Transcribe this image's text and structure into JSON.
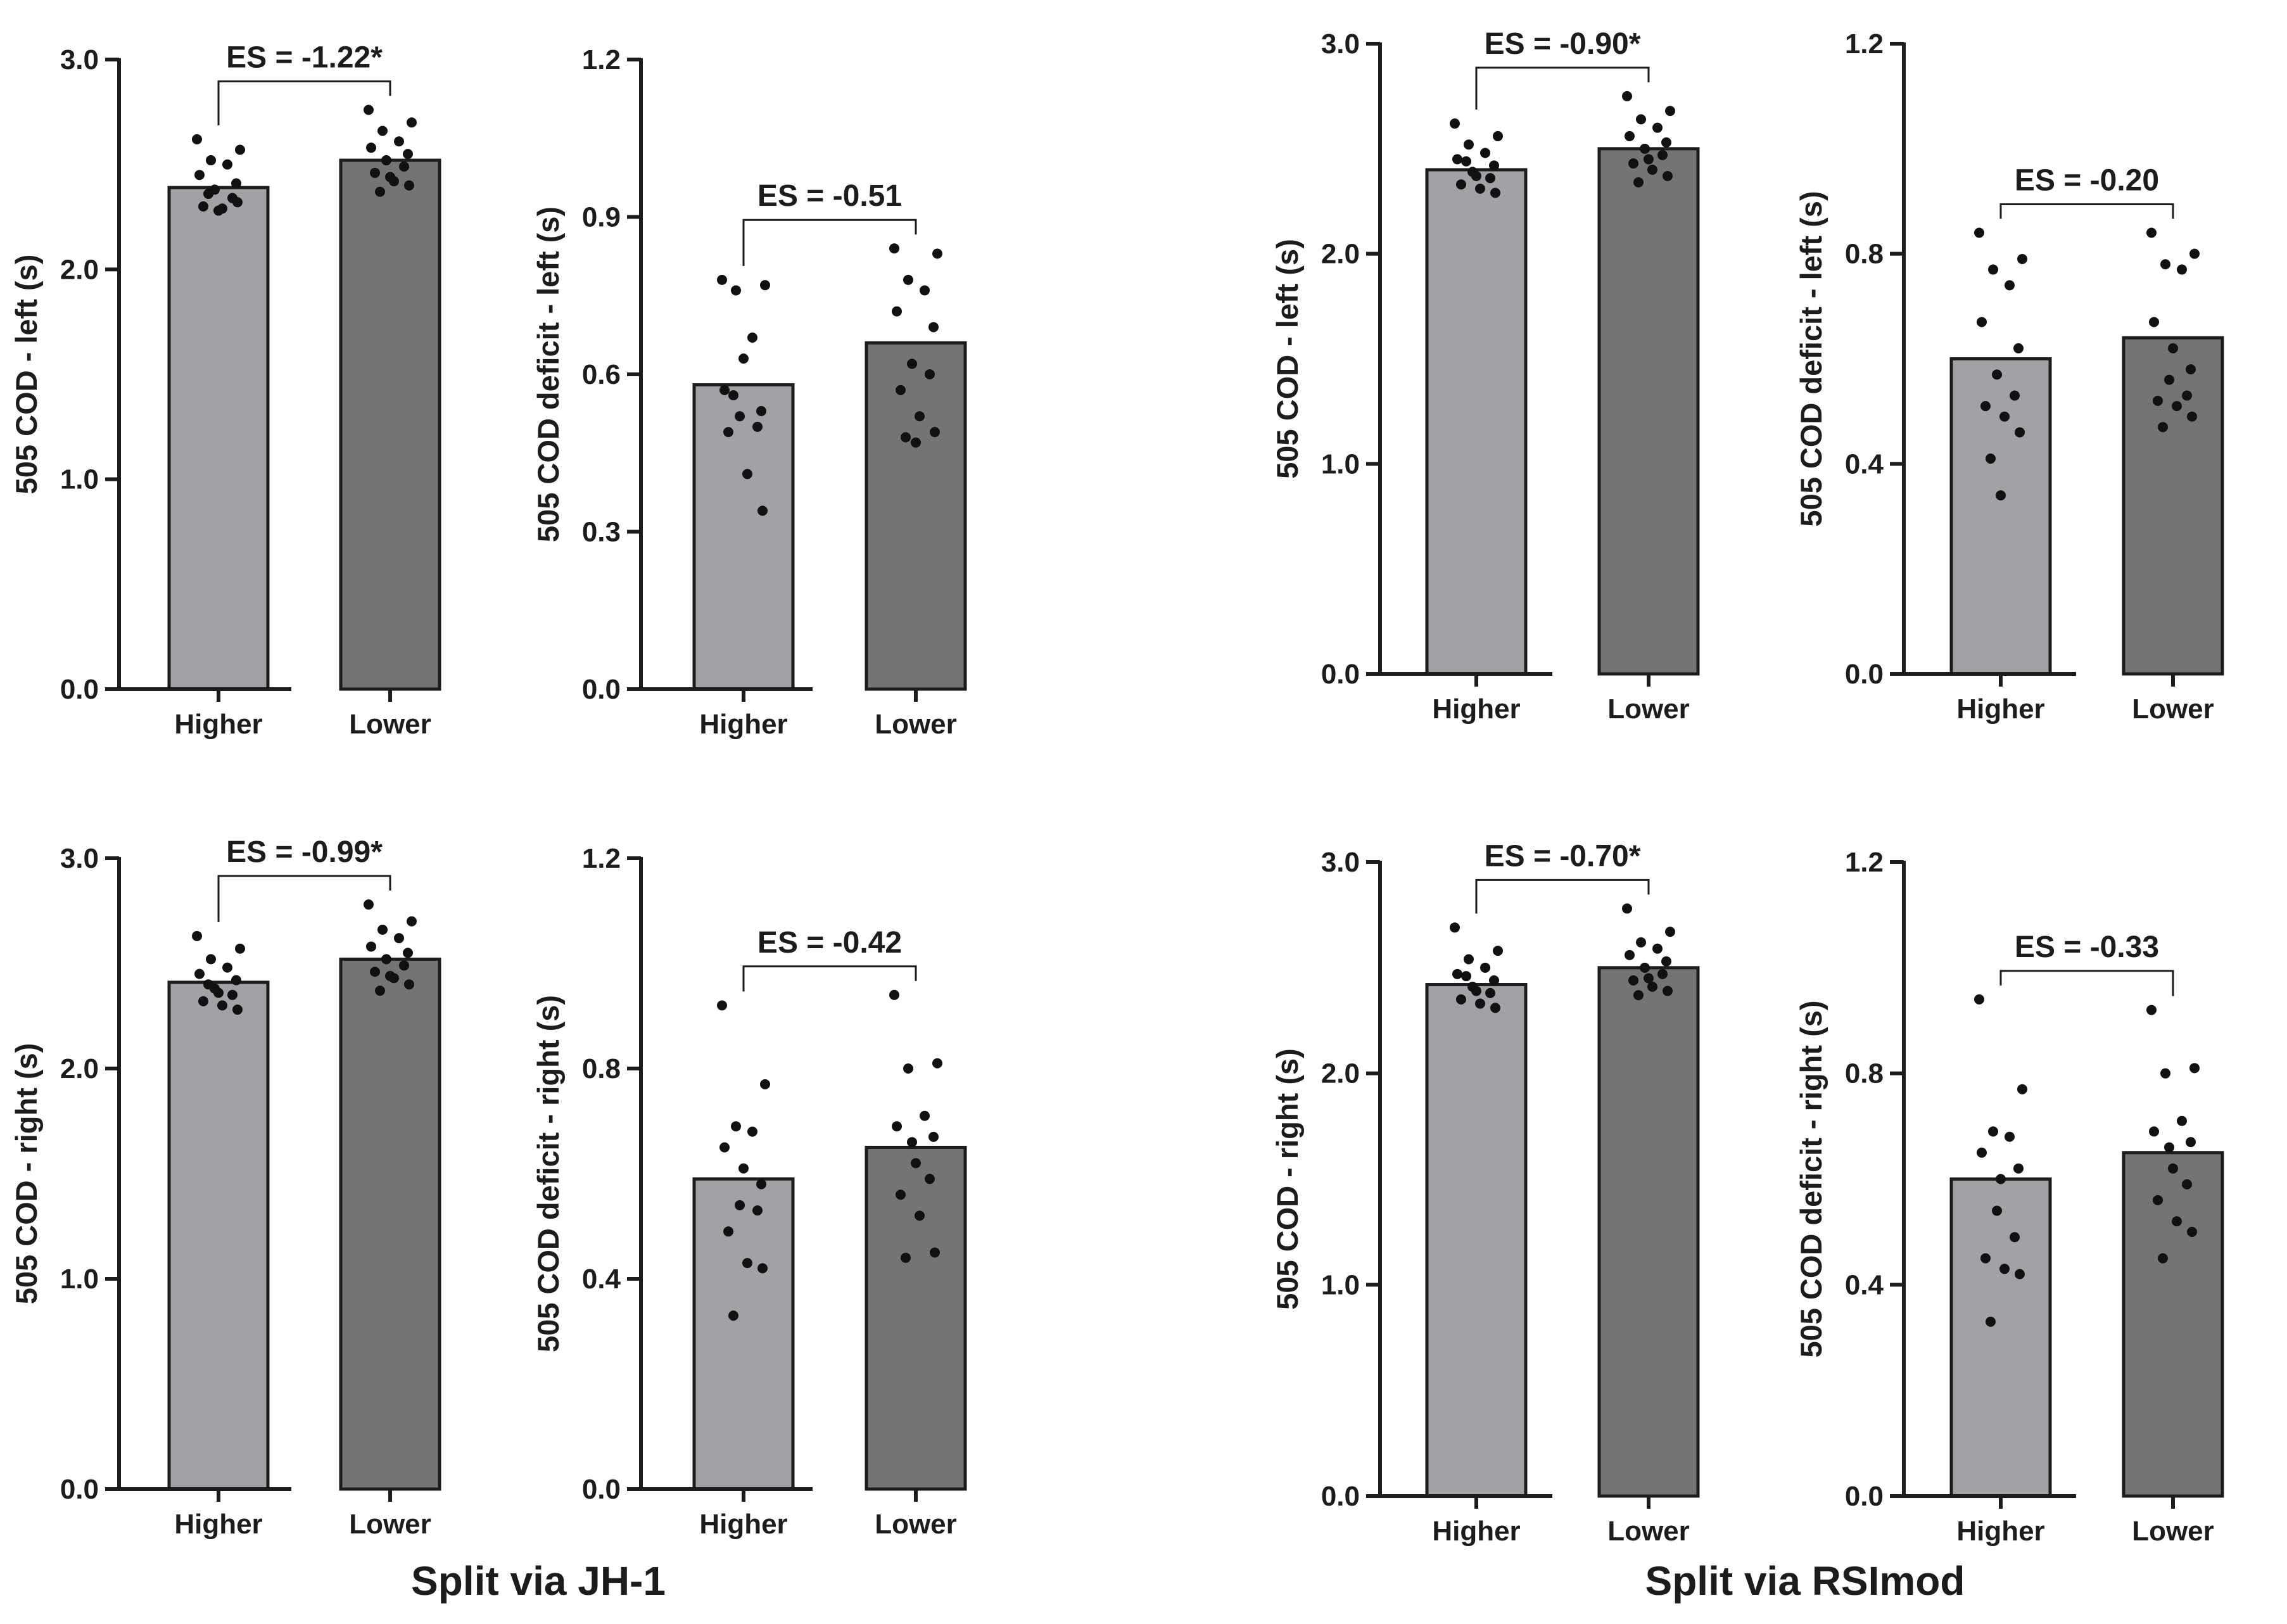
{
  "figure": {
    "group_labels": [
      "Split via JH-1",
      "Split via RSImod"
    ],
    "colors": {
      "higher_bar": "#a2a1a6",
      "lower_bar": "#747474",
      "ink": "#1c1c1c",
      "dot": "#111111"
    }
  },
  "chart_data": [
    {
      "type": "bar",
      "group": "Split via JH-1",
      "categories": [
        "Higher",
        "Lower"
      ],
      "values": [
        2.39,
        2.52
      ],
      "ylabel": "505 COD - left (s)",
      "ylim": [
        0,
        3.0
      ],
      "yticks": [
        0,
        1.0,
        2.0,
        3.0
      ],
      "ytick_labels": [
        "0.0",
        "1.0",
        "2.0",
        "3.0"
      ],
      "annotation": "ES = -1.22*",
      "points": [
        [
          2.62,
          2.57,
          2.52,
          2.5,
          2.45,
          2.41,
          2.38,
          2.34,
          2.3,
          2.29,
          2.32,
          2.36,
          2.28
        ],
        [
          2.76,
          2.7,
          2.66,
          2.61,
          2.58,
          2.55,
          2.52,
          2.49,
          2.46,
          2.42,
          2.4,
          2.37,
          2.44
        ]
      ]
    },
    {
      "type": "bar",
      "group": "Split via JH-1",
      "categories": [
        "Higher",
        "Lower"
      ],
      "values": [
        0.58,
        0.66
      ],
      "ylabel": "505 COD deficit - left (s)",
      "ylim": [
        0,
        1.2
      ],
      "yticks": [
        0,
        0.3,
        0.6,
        0.9,
        1.2
      ],
      "ytick_labels": [
        "0.0",
        "0.3",
        "0.6",
        "0.9",
        "1.2"
      ],
      "annotation": "ES = -0.51",
      "points": [
        [
          0.78,
          0.77,
          0.76,
          0.67,
          0.57,
          0.53,
          0.52,
          0.5,
          0.49,
          0.41,
          0.34,
          0.56,
          0.63
        ],
        [
          0.84,
          0.83,
          0.78,
          0.76,
          0.72,
          0.69,
          0.62,
          0.6,
          0.57,
          0.52,
          0.49,
          0.48,
          0.47
        ]
      ]
    },
    {
      "type": "bar",
      "group": "Split via RSImod",
      "categories": [
        "Higher",
        "Lower"
      ],
      "values": [
        2.4,
        2.5
      ],
      "ylabel": "505 COD - left (s)",
      "ylim": [
        0,
        3.0
      ],
      "yticks": [
        0,
        1.0,
        2.0,
        3.0
      ],
      "ytick_labels": [
        "0.0",
        "1.0",
        "2.0",
        "3.0"
      ],
      "annotation": "ES = -0.90*",
      "points": [
        [
          2.62,
          2.56,
          2.52,
          2.48,
          2.45,
          2.42,
          2.39,
          2.36,
          2.33,
          2.31,
          2.29,
          2.44,
          2.37
        ],
        [
          2.75,
          2.68,
          2.64,
          2.6,
          2.56,
          2.53,
          2.5,
          2.47,
          2.43,
          2.4,
          2.37,
          2.34,
          2.45
        ]
      ]
    },
    {
      "type": "bar",
      "group": "Split via RSImod",
      "categories": [
        "Higher",
        "Lower"
      ],
      "values": [
        0.6,
        0.64
      ],
      "ylabel": "505 COD deficit - left (s)",
      "ylim": [
        0,
        1.2
      ],
      "yticks": [
        0,
        0.4,
        0.8,
        1.2
      ],
      "ytick_labels": [
        "0.0",
        "0.4",
        "0.8",
        "1.2"
      ],
      "annotation": "ES = -0.20",
      "points": [
        [
          0.84,
          0.79,
          0.77,
          0.74,
          0.67,
          0.62,
          0.57,
          0.53,
          0.51,
          0.49,
          0.46,
          0.41,
          0.34
        ],
        [
          0.84,
          0.8,
          0.78,
          0.77,
          0.67,
          0.58,
          0.56,
          0.53,
          0.52,
          0.51,
          0.49,
          0.47,
          0.62
        ]
      ]
    },
    {
      "type": "bar",
      "group": "Split via JH-1",
      "categories": [
        "Higher",
        "Lower"
      ],
      "values": [
        2.41,
        2.52
      ],
      "ylabel": "505 COD - right (s)",
      "ylim": [
        0,
        3.0
      ],
      "yticks": [
        0,
        1.0,
        2.0,
        3.0
      ],
      "ytick_labels": [
        "0.0",
        "1.0",
        "2.0",
        "3.0"
      ],
      "annotation": "ES = -0.99*",
      "points": [
        [
          2.63,
          2.57,
          2.52,
          2.48,
          2.45,
          2.42,
          2.38,
          2.35,
          2.32,
          2.3,
          2.28,
          2.4,
          2.36
        ],
        [
          2.78,
          2.7,
          2.66,
          2.62,
          2.58,
          2.55,
          2.52,
          2.49,
          2.46,
          2.43,
          2.4,
          2.37,
          2.44
        ]
      ]
    },
    {
      "type": "bar",
      "group": "Split via JH-1",
      "categories": [
        "Higher",
        "Lower"
      ],
      "values": [
        0.59,
        0.65
      ],
      "ylabel": "505 COD deficit - right (s)",
      "ylim": [
        0,
        1.2
      ],
      "yticks": [
        0,
        0.4,
        0.8,
        1.2
      ],
      "ytick_labels": [
        "0.0",
        "0.4",
        "0.8",
        "1.2"
      ],
      "annotation": "ES = -0.42",
      "points": [
        [
          0.92,
          0.77,
          0.69,
          0.68,
          0.65,
          0.58,
          0.54,
          0.53,
          0.49,
          0.43,
          0.42,
          0.33,
          0.61
        ],
        [
          0.94,
          0.81,
          0.8,
          0.71,
          0.69,
          0.67,
          0.66,
          0.59,
          0.56,
          0.52,
          0.45,
          0.44,
          0.62
        ]
      ]
    },
    {
      "type": "bar",
      "group": "Split via RSImod",
      "categories": [
        "Higher",
        "Lower"
      ],
      "values": [
        2.42,
        2.5
      ],
      "ylabel": "505 COD - right (s)",
      "ylim": [
        0,
        3.0
      ],
      "yticks": [
        0,
        1.0,
        2.0,
        3.0
      ],
      "ytick_labels": [
        "0.0",
        "1.0",
        "2.0",
        "3.0"
      ],
      "annotation": "ES = -0.70*",
      "points": [
        [
          2.69,
          2.58,
          2.54,
          2.5,
          2.47,
          2.44,
          2.41,
          2.38,
          2.35,
          2.33,
          2.31,
          2.46,
          2.39
        ],
        [
          2.78,
          2.67,
          2.62,
          2.59,
          2.56,
          2.53,
          2.5,
          2.47,
          2.44,
          2.41,
          2.39,
          2.37,
          2.45
        ]
      ]
    },
    {
      "type": "bar",
      "group": "Split via RSImod",
      "categories": [
        "Higher",
        "Lower"
      ],
      "values": [
        0.6,
        0.65
      ],
      "ylabel": "505 COD deficit - right (s)",
      "ylim": [
        0,
        1.2
      ],
      "yticks": [
        0,
        0.4,
        0.8,
        1.2
      ],
      "ytick_labels": [
        "0.0",
        "0.4",
        "0.8",
        "1.2"
      ],
      "annotation": "ES = -0.33",
      "points": [
        [
          0.94,
          0.77,
          0.69,
          0.68,
          0.65,
          0.62,
          0.54,
          0.49,
          0.45,
          0.43,
          0.42,
          0.33,
          0.6
        ],
        [
          0.92,
          0.81,
          0.8,
          0.71,
          0.69,
          0.67,
          0.66,
          0.59,
          0.56,
          0.52,
          0.5,
          0.45,
          0.62
        ]
      ]
    }
  ]
}
